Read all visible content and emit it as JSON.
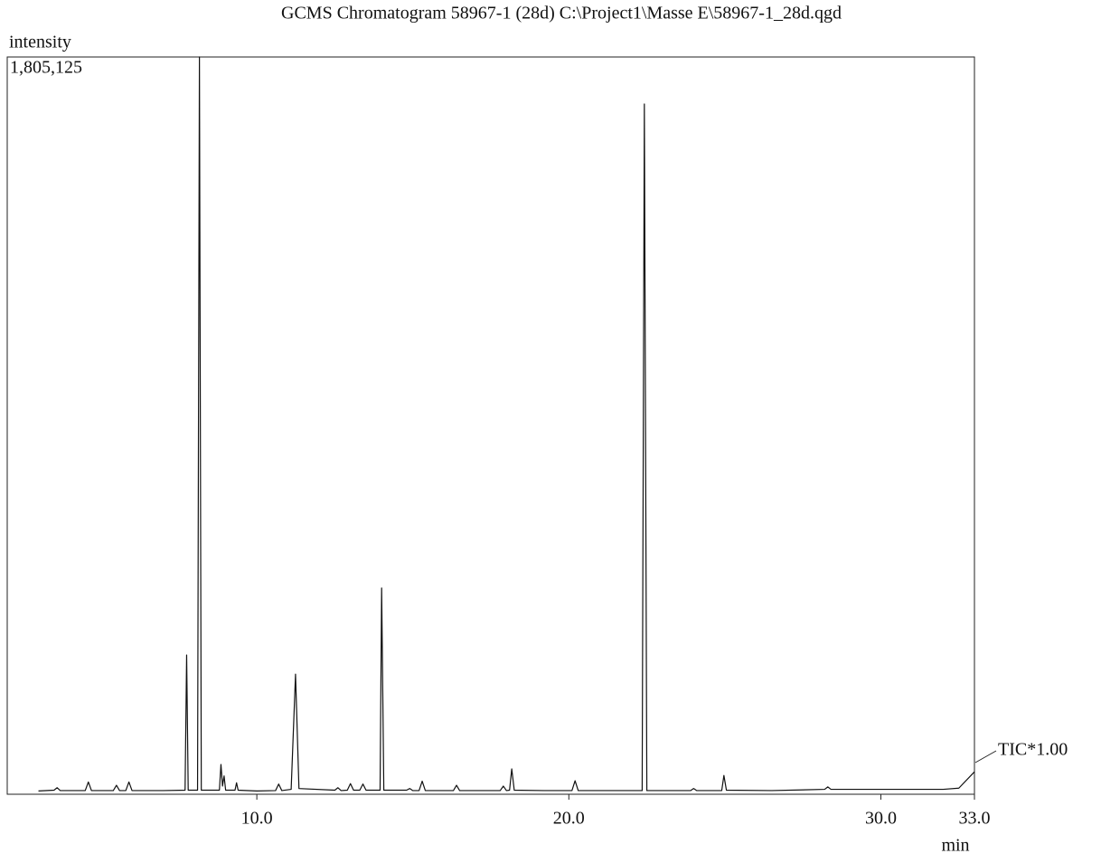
{
  "chart_data": {
    "type": "line",
    "title": "GCMS Chromatogram   58967-1 (28d) C:\\Project1\\Masse E\\58967-1_28d.qgd",
    "y_label": "intensity",
    "x_label": "min",
    "annotation": "TIC*1.00",
    "xlim": [
      2,
      33
    ],
    "ylim": [
      0,
      1805125
    ],
    "xticks": [
      {
        "value": 10,
        "label": "10.0"
      },
      {
        "value": 20,
        "label": "20.0"
      },
      {
        "value": 30,
        "label": "30.0"
      },
      {
        "value": 33,
        "label": "33.0"
      }
    ],
    "yticks": [
      {
        "value": 1805125,
        "label": "1,805,125"
      }
    ],
    "grid": false,
    "series": [
      {
        "name": "TIC*1.00",
        "color": "#111111",
        "x": [
          3.0,
          3.5,
          3.6,
          3.7,
          4.5,
          4.6,
          4.7,
          5.4,
          5.5,
          5.6,
          5.8,
          5.9,
          6.0,
          7.0,
          7.7,
          7.75,
          7.8,
          8.1,
          8.16,
          8.22,
          8.8,
          8.85,
          8.9,
          8.95,
          9.0,
          9.3,
          9.35,
          9.4,
          10.0,
          10.6,
          10.7,
          10.8,
          11.1,
          11.24,
          11.35,
          12.5,
          12.6,
          12.7,
          12.9,
          13.0,
          13.1,
          13.3,
          13.4,
          13.5,
          13.95,
          14.0,
          14.07,
          14.8,
          14.9,
          15.0,
          15.2,
          15.3,
          15.4,
          16.3,
          16.4,
          16.5,
          17.8,
          17.9,
          18.0,
          18.1,
          18.17,
          18.25,
          19.2,
          20.1,
          20.2,
          20.3,
          22.35,
          22.42,
          22.5,
          23.9,
          24.0,
          24.1,
          24.9,
          24.97,
          25.05,
          26.5,
          28.2,
          28.3,
          28.4,
          30.0,
          32.0,
          32.5,
          33.0
        ],
        "values": [
          8000,
          10000,
          16000,
          9000,
          9000,
          30000,
          9000,
          9000,
          22000,
          9000,
          9000,
          30000,
          9000,
          9000,
          10000,
          341000,
          10000,
          10000,
          1805125,
          10000,
          10000,
          73000,
          20000,
          45000,
          10000,
          10000,
          28000,
          10000,
          8000,
          9000,
          25000,
          9000,
          12000,
          294000,
          14000,
          10000,
          16000,
          9000,
          10000,
          26000,
          10000,
          10000,
          25000,
          10000,
          10000,
          505000,
          10000,
          10000,
          14000,
          9000,
          9000,
          32000,
          9000,
          9000,
          22000,
          9000,
          9000,
          20000,
          9000,
          10000,
          62000,
          10000,
          9000,
          9000,
          33000,
          9000,
          9000,
          1690000,
          9000,
          9000,
          14000,
          9000,
          9000,
          46000,
          10000,
          9000,
          12000,
          18000,
          12000,
          12000,
          12000,
          15000,
          55000
        ]
      }
    ]
  }
}
